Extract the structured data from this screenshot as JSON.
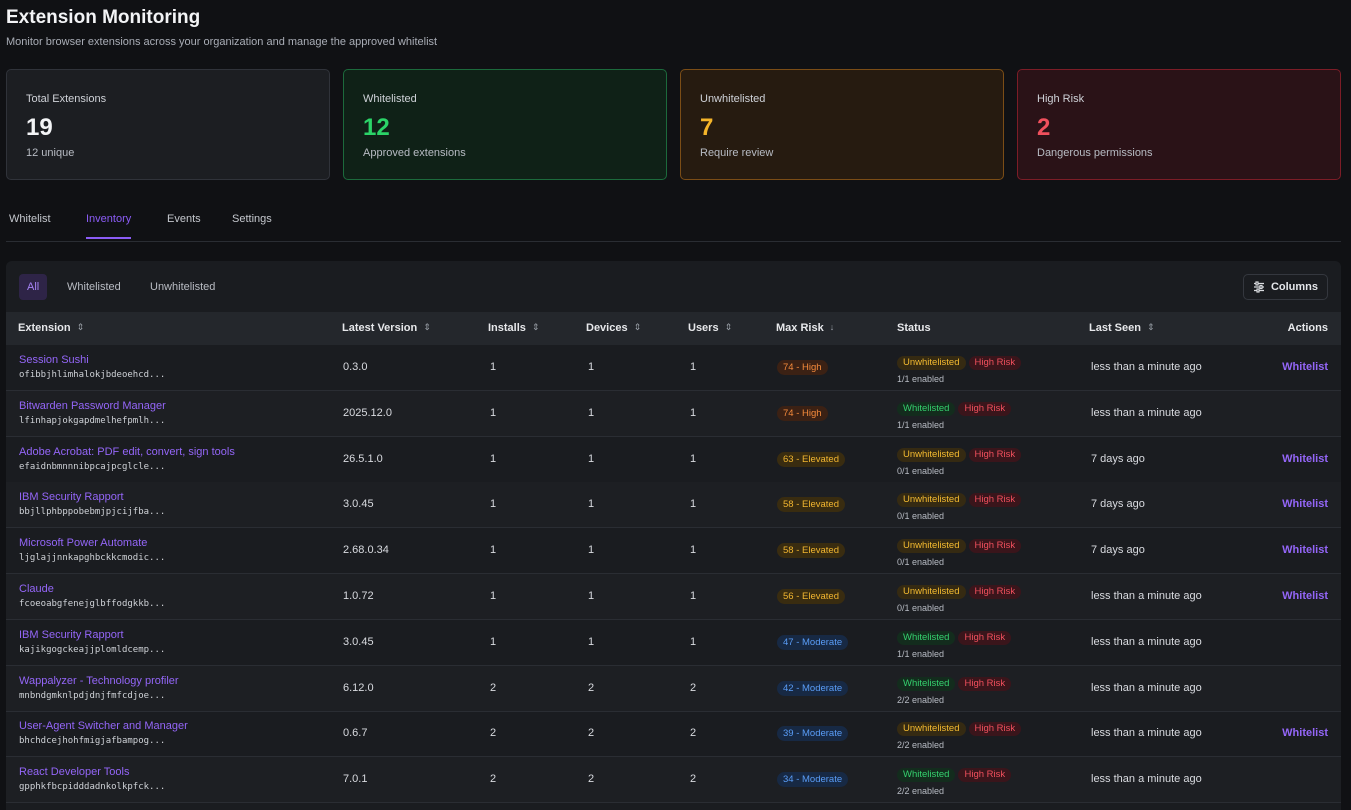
{
  "header": {
    "title": "Extension Monitoring",
    "subtitle": "Monitor browser extensions across your organization and manage the approved whitelist"
  },
  "cards": [
    {
      "title": "Total Extensions",
      "value": "19",
      "sub": "12 unique"
    },
    {
      "title": "Whitelisted",
      "value": "12",
      "sub": "Approved extensions"
    },
    {
      "title": "Unwhitelisted",
      "value": "7",
      "sub": "Require review"
    },
    {
      "title": "High Risk",
      "value": "2",
      "sub": "Dangerous permissions"
    }
  ],
  "tabs": [
    "Whitelist",
    "Inventory",
    "Events",
    "Settings"
  ],
  "active_tab": "Inventory",
  "filters": [
    "All",
    "Whitelisted",
    "Unwhitelisted"
  ],
  "active_filter": "All",
  "columns_button": "Columns",
  "table": {
    "headers": {
      "extension": "Extension",
      "version": "Latest Version",
      "installs": "Installs",
      "devices": "Devices",
      "users": "Users",
      "risk": "Max Risk",
      "status": "Status",
      "last_seen": "Last Seen",
      "actions": "Actions"
    },
    "rows": [
      {
        "name": "Session Sushi",
        "id": "ofibbjhlimhalokjbdeoehcd...",
        "version": "0.3.0",
        "installs": "1",
        "devices": "1",
        "users": "1",
        "risk": "74 - High",
        "risk_level": "high",
        "status": "Unwhitelisted",
        "high_risk": "High Risk",
        "enabled": "1/1 enabled",
        "last_seen": "less than a minute ago",
        "action": "Whitelist"
      },
      {
        "name": "Bitwarden Password Manager",
        "id": "lfinhapjokgapdmelhefpmlh...",
        "version": "2025.12.0",
        "installs": "1",
        "devices": "1",
        "users": "1",
        "risk": "74 - High",
        "risk_level": "high",
        "status": "Whitelisted",
        "high_risk": "High Risk",
        "enabled": "1/1 enabled",
        "last_seen": "less than a minute ago",
        "action": ""
      },
      {
        "name": "Adobe Acrobat: PDF edit, convert, sign tools",
        "id": "efaidnbmnnnibpcajpcglcle...",
        "version": "26.5.1.0",
        "installs": "1",
        "devices": "1",
        "users": "1",
        "risk": "63 - Elevated",
        "risk_level": "elevated",
        "status": "Unwhitelisted",
        "high_risk": "High Risk",
        "enabled": "0/1 enabled",
        "last_seen": "7 days ago",
        "action": "Whitelist"
      },
      {
        "name": "IBM Security Rapport",
        "id": "bbjllphbppobebmjpjcijfba...",
        "version": "3.0.45",
        "installs": "1",
        "devices": "1",
        "users": "1",
        "risk": "58 - Elevated",
        "risk_level": "elevated",
        "status": "Unwhitelisted",
        "high_risk": "High Risk",
        "enabled": "0/1 enabled",
        "last_seen": "7 days ago",
        "action": "Whitelist"
      },
      {
        "name": "Microsoft Power Automate",
        "id": "ljglajjnnkapghbckkcmodic...",
        "version": "2.68.0.34",
        "installs": "1",
        "devices": "1",
        "users": "1",
        "risk": "58 - Elevated",
        "risk_level": "elevated",
        "status": "Unwhitelisted",
        "high_risk": "High Risk",
        "enabled": "0/1 enabled",
        "last_seen": "7 days ago",
        "action": "Whitelist"
      },
      {
        "name": "Claude",
        "id": "fcoeoabgfenejglbffodgkkb...",
        "version": "1.0.72",
        "installs": "1",
        "devices": "1",
        "users": "1",
        "risk": "56 - Elevated",
        "risk_level": "elevated",
        "status": "Unwhitelisted",
        "high_risk": "High Risk",
        "enabled": "0/1 enabled",
        "last_seen": "less than a minute ago",
        "action": "Whitelist"
      },
      {
        "name": "IBM Security Rapport",
        "id": "kajikgogckeajjplomldcemp...",
        "version": "3.0.45",
        "installs": "1",
        "devices": "1",
        "users": "1",
        "risk": "47 - Moderate",
        "risk_level": "moderate",
        "status": "Whitelisted",
        "high_risk": "High Risk",
        "enabled": "1/1 enabled",
        "last_seen": "less than a minute ago",
        "action": ""
      },
      {
        "name": "Wappalyzer - Technology profiler",
        "id": "mnbndgmknlpdjdnjfmfcdjoe...",
        "version": "6.12.0",
        "installs": "2",
        "devices": "2",
        "users": "2",
        "risk": "42 - Moderate",
        "risk_level": "moderate",
        "status": "Whitelisted",
        "high_risk": "High Risk",
        "enabled": "2/2 enabled",
        "last_seen": "less than a minute ago",
        "action": ""
      },
      {
        "name": "User-Agent Switcher and Manager",
        "id": "bhchdcejhohfmigjafbampog...",
        "version": "0.6.7",
        "installs": "2",
        "devices": "2",
        "users": "2",
        "risk": "39 - Moderate",
        "risk_level": "moderate",
        "status": "Unwhitelisted",
        "high_risk": "High Risk",
        "enabled": "2/2 enabled",
        "last_seen": "less than a minute ago",
        "action": "Whitelist"
      },
      {
        "name": "React Developer Tools",
        "id": "gpphkfbcpidddadnkolkpfck...",
        "version": "7.0.1",
        "installs": "2",
        "devices": "2",
        "users": "2",
        "risk": "34 - Moderate",
        "risk_level": "moderate",
        "status": "Whitelisted",
        "high_risk": "High Risk",
        "enabled": "2/2 enabled",
        "last_seen": "less than a minute ago",
        "action": ""
      }
    ]
  }
}
